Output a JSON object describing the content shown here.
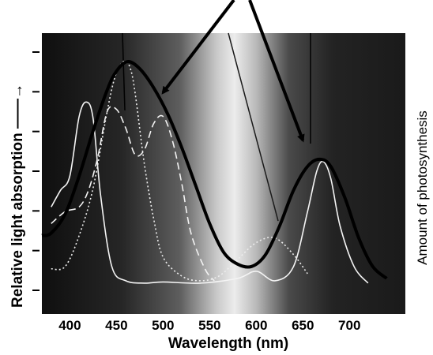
{
  "chart_data": {
    "type": "line",
    "xlabel": "Wavelength (nm)",
    "ylabel": "Relative light absorption",
    "ylabel_right": "Amount of photosynthesis",
    "x_ticks": [
      "400",
      "450",
      "500",
      "550",
      "600",
      "650",
      "700"
    ],
    "xlim": [
      370,
      760
    ],
    "ylim": [
      0,
      10
    ],
    "y_tick_count": 7,
    "grid": false,
    "legend": "none",
    "background": "dark gradient with bright band near 550-600 nm",
    "series": [
      {
        "style": "thick-black",
        "x": [
          370,
          380,
          395,
          410,
          425,
          440,
          450,
          462,
          475,
          490,
          505,
          520,
          535,
          550,
          565,
          580,
          595,
          610,
          625,
          640,
          655,
          668,
          680,
          695,
          710,
          725,
          740
        ],
        "y": [
          2.3,
          2.4,
          3.2,
          4.8,
          6.7,
          8.4,
          9.2,
          9.6,
          9.3,
          8.5,
          7.4,
          6.0,
          4.4,
          2.8,
          1.6,
          1.1,
          1.0,
          1.5,
          2.7,
          4.2,
          5.2,
          5.5,
          5.2,
          3.9,
          2.2,
          1.0,
          0.5
        ]
      },
      {
        "style": "thin-white-solid",
        "x": [
          380,
          390,
          400,
          410,
          418,
          425,
          433,
          445,
          460,
          480,
          500,
          540,
          580,
          600,
          620,
          640,
          655,
          665,
          672,
          680,
          690,
          705,
          720
        ],
        "y": [
          3.5,
          4.2,
          4.8,
          7.3,
          7.9,
          7.2,
          4.0,
          1.0,
          0.4,
          0.3,
          0.35,
          0.3,
          0.5,
          0.8,
          0.4,
          1.0,
          3.3,
          5.0,
          5.4,
          4.7,
          2.7,
          1.0,
          0.3
        ]
      },
      {
        "style": "dotted-white",
        "x": [
          380,
          395,
          410,
          425,
          440,
          448,
          455,
          460,
          465,
          470,
          480,
          490,
          500,
          520,
          540,
          560,
          580,
          600,
          620,
          640,
          655
        ],
        "y": [
          0.9,
          1.0,
          2.3,
          4.3,
          7.5,
          8.9,
          9.5,
          9.6,
          9.3,
          8.3,
          5.3,
          3.0,
          1.4,
          0.6,
          0.4,
          0.6,
          1.3,
          2.0,
          2.2,
          1.5,
          0.7
        ]
      },
      {
        "style": "dashed-white",
        "x": [
          380,
          395,
          410,
          420,
          430,
          440,
          450,
          460,
          470,
          480,
          490,
          500,
          510,
          520,
          530,
          545,
          555
        ],
        "y": [
          2.8,
          3.3,
          3.5,
          4.2,
          5.6,
          7.5,
          7.6,
          6.8,
          5.7,
          5.9,
          7.0,
          7.3,
          6.3,
          4.5,
          2.4,
          0.9,
          0.4
        ]
      }
    ],
    "annotations": {
      "arrows": 2,
      "arrow_1_to": [
        500,
        8.3
      ],
      "arrow_2_to": [
        650,
        6.3
      ]
    }
  }
}
